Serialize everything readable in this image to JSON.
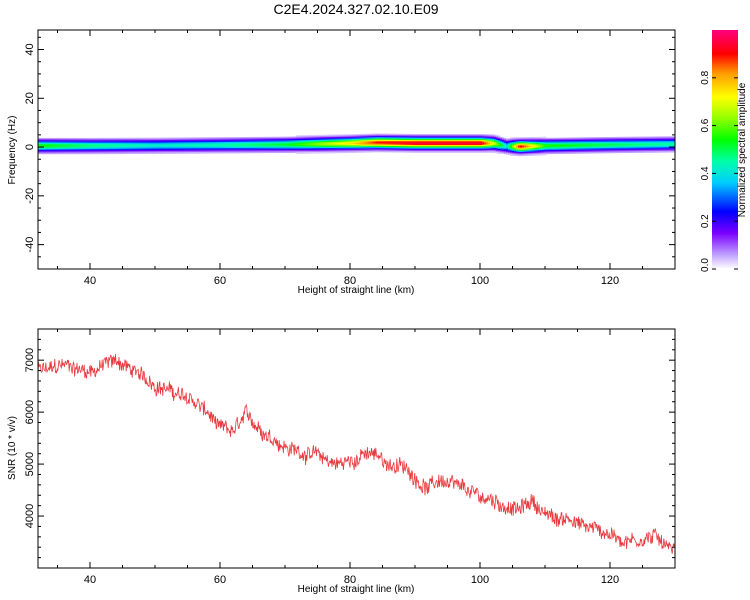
{
  "title": "C2E4.2024.327.02.10.E09",
  "chart_data": [
    {
      "type": "heatmap",
      "xlabel": "Height of straight line (km)",
      "ylabel": "Frequency (Hz)",
      "xlim": [
        32,
        130
      ],
      "ylim": [
        -50,
        48
      ],
      "x_ticks": [
        40,
        60,
        80,
        100,
        120
      ],
      "y_ticks": [
        40,
        20,
        0,
        -20,
        -40
      ],
      "colorbar": {
        "label": "Normalized spectral amplitude",
        "range": [
          0,
          1
        ],
        "ticks": [
          "0.0",
          "0.2",
          "0.4",
          "0.6",
          "0.8"
        ],
        "tick_values": [
          0,
          0.2,
          0.4,
          0.6,
          0.8
        ]
      },
      "band_center_freq": {
        "x": [
          32,
          40,
          50,
          60,
          70,
          80,
          84,
          90,
          100,
          102,
          104,
          106,
          110,
          120,
          130
        ],
        "y": [
          0.5,
          0.5,
          0.6,
          0.8,
          1.0,
          1.5,
          1.8,
          1.6,
          1.6,
          1.5,
          0.3,
          0.2,
          0.5,
          0.9,
          1.2
        ]
      },
      "peak_amplitude": {
        "x": [
          32,
          40,
          50,
          60,
          70,
          80,
          84,
          90,
          100,
          102,
          104,
          106,
          110,
          120,
          130
        ],
        "y": [
          0.55,
          0.48,
          0.42,
          0.45,
          0.52,
          0.75,
          0.9,
          0.95,
          0.95,
          0.7,
          0.4,
          0.92,
          0.55,
          0.5,
          0.45
        ]
      }
    },
    {
      "type": "line",
      "xlabel": "Height of straight line (km)",
      "ylabel": "SNR (10 * v/v)",
      "xlim": [
        32,
        130
      ],
      "ylim": [
        3000,
        7600
      ],
      "x_ticks": [
        40,
        60,
        80,
        100,
        120
      ],
      "y_ticks": [
        7000,
        6000,
        5000,
        4000
      ],
      "line_color": "#e8383d",
      "series": [
        {
          "x": [
            32,
            34,
            36,
            38,
            40,
            42,
            44,
            46,
            48,
            50,
            52,
            54,
            56,
            58,
            60,
            62,
            64,
            66,
            68,
            70,
            72,
            74,
            76,
            78,
            80,
            82,
            84,
            86,
            88,
            90,
            92,
            94,
            96,
            98,
            100,
            102,
            104,
            106,
            108,
            110,
            112,
            114,
            116,
            118,
            120,
            122,
            124,
            126,
            128,
            130
          ],
          "y": [
            6800,
            6820,
            6900,
            6850,
            6800,
            6900,
            7000,
            6850,
            6650,
            6550,
            6450,
            6300,
            6200,
            6000,
            5650,
            5600,
            5900,
            5700,
            5550,
            5350,
            5250,
            5200,
            5100,
            5000,
            5050,
            5200,
            5150,
            5000,
            4950,
            4750,
            4550,
            4700,
            4550,
            4450,
            4350,
            4300,
            4200,
            4100,
            4300,
            4050,
            3900,
            4000,
            3800,
            3750,
            3650,
            3550,
            3550,
            3600,
            3550,
            3350
          ],
          "noise_amplitude": 170
        }
      ]
    }
  ]
}
